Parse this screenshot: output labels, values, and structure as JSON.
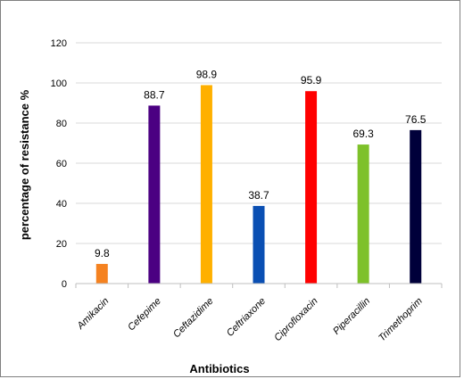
{
  "chart_data": {
    "type": "bar",
    "categories": [
      "Amikacin",
      "Cefepime",
      "Ceftazidime",
      "Ceftriaxone",
      "Ciprofloxacin",
      "Piperacillin",
      "Trimethoprim"
    ],
    "values": [
      9.8,
      88.7,
      98.9,
      38.7,
      95.9,
      69.3,
      76.5
    ],
    "data_labels": [
      "9.8",
      "88.7",
      "98.9",
      "38.7",
      "95.9",
      "69.3",
      "76.5"
    ],
    "colors": [
      "#f58220",
      "#4b0082",
      "#ffb000",
      "#0a4fb3",
      "#ff0000",
      "#7ec12a",
      "#00003a"
    ],
    "title": "",
    "xlabel": "Antibiotics",
    "ylabel": "percentage of resistance  %",
    "ylim": [
      0,
      120
    ],
    "yticks": [
      0,
      20,
      40,
      60,
      80,
      100,
      120
    ],
    "grid": "horizontal",
    "legend": "none"
  }
}
